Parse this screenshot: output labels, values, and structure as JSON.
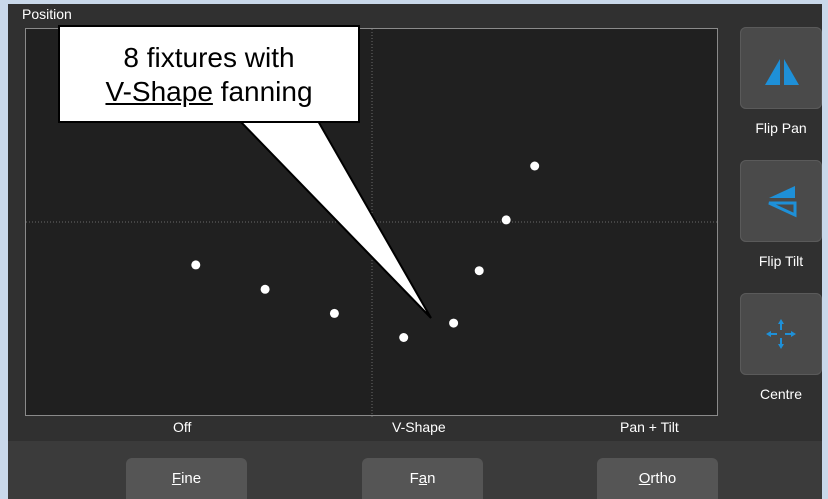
{
  "panel": {
    "title": "Position"
  },
  "fan_modes": [
    "Off",
    "V-Shape",
    "Pan + Tilt"
  ],
  "plot_points_normalized": [
    {
      "pan": 0.245,
      "tilt": 0.608
    },
    {
      "pan": 0.345,
      "tilt": 0.671
    },
    {
      "pan": 0.445,
      "tilt": 0.733
    },
    {
      "pan": 0.545,
      "tilt": 0.795
    },
    {
      "pan": 0.617,
      "tilt": 0.758
    },
    {
      "pan": 0.654,
      "tilt": 0.623
    },
    {
      "pan": 0.693,
      "tilt": 0.492
    },
    {
      "pan": 0.734,
      "tilt": 0.353
    }
  ],
  "side_buttons": [
    {
      "label": "Flip Pan",
      "icon": "flip-pan-icon"
    },
    {
      "label": "Flip Tilt",
      "icon": "flip-tilt-icon"
    },
    {
      "label": "Centre",
      "icon": "centre-icon"
    }
  ],
  "bottom_buttons": [
    {
      "label": "Fine",
      "mnemonic": "F"
    },
    {
      "label": "Fan",
      "mnemonic": "a"
    },
    {
      "label": "Ortho",
      "mnemonic": "O"
    }
  ],
  "callout": {
    "line1": "8 fixtures with",
    "emphasis": "V-Shape",
    "line2_rest": " fanning"
  },
  "colors": {
    "accent": "#1e90d8",
    "plot_bg": "#202020",
    "panel_bg": "#303030"
  }
}
